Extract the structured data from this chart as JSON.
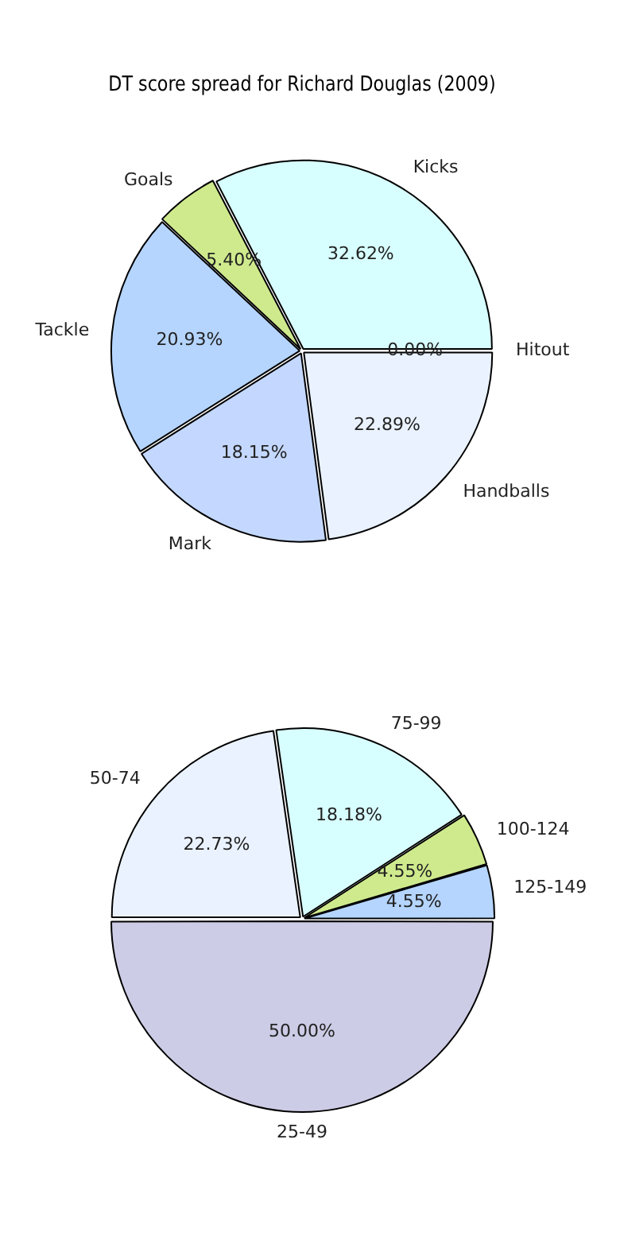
{
  "chart_data": [
    {
      "type": "pie",
      "title": "DT score spread for Richard Douglas (2009)",
      "categories": [
        "Handballs",
        "Mark",
        "Tackle",
        "Goals",
        "Kicks",
        "Hitout"
      ],
      "values": [
        22.89,
        18.15,
        20.93,
        5.4,
        32.62,
        0.0
      ],
      "colors": [
        "#eaf2ff",
        "#c4d8ff",
        "#b5d5ff",
        "#cfea8d",
        "#d8ffff",
        "#cccce6"
      ],
      "value_labels": [
        "22.89%",
        "18.15%",
        "20.93%",
        "5.40%",
        "32.62%",
        "0.00%"
      ],
      "legend": false
    },
    {
      "type": "pie",
      "categories": [
        "25-49",
        "50-74",
        "75-99",
        "100-124",
        "125-149"
      ],
      "values": [
        50.0,
        22.73,
        18.18,
        4.55,
        4.55
      ],
      "colors": [
        "#cccce6",
        "#eaf2ff",
        "#d8ffff",
        "#cfea8d",
        "#b5d5ff"
      ],
      "value_labels": [
        "50.00%",
        "22.73%",
        "18.18%",
        "4.55%",
        "4.55%"
      ],
      "legend": false
    }
  ]
}
